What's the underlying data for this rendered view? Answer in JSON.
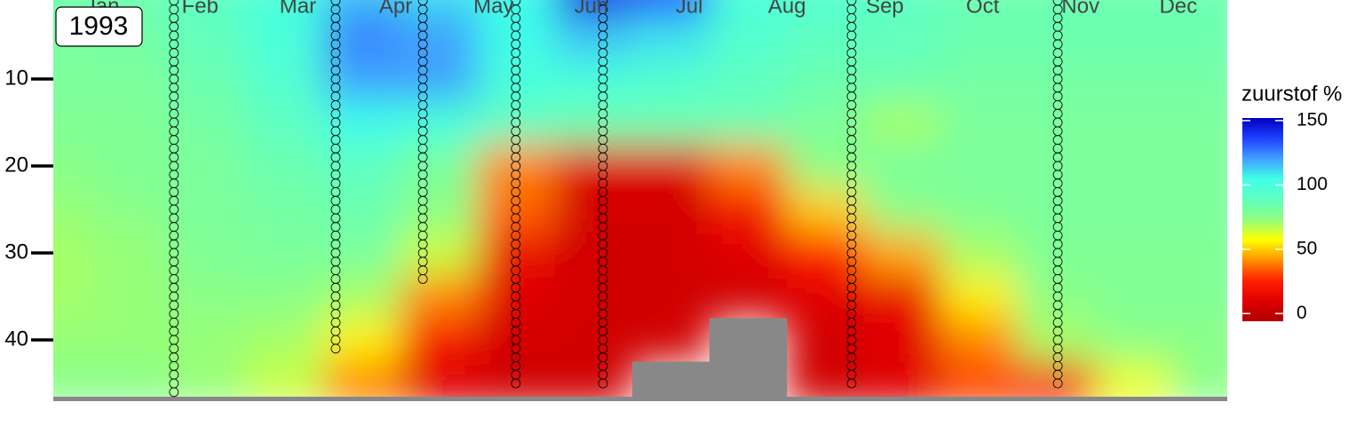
{
  "chart_data": {
    "type": "heatmap",
    "annotation": "1993",
    "categories": [
      "Jan",
      "Feb",
      "Mar",
      "Apr",
      "May",
      "Jun",
      "Jul",
      "Aug",
      "Sep",
      "Oct",
      "Nov",
      "Dec"
    ],
    "xlim": [
      0,
      365
    ],
    "ylim": [
      0,
      47
    ],
    "yticks": [
      10,
      20,
      30,
      40
    ],
    "y_inverted": true,
    "legend_title": "zuurstof %",
    "clim": [
      -6,
      152
    ],
    "cticks": [
      0,
      50,
      100,
      150
    ],
    "colors": [
      "#b00000",
      "#e00000",
      "#ff2000",
      "#ff9000",
      "#ffff00",
      "#90ff80",
      "#60ffc0",
      "#40ffe8",
      "#40a0ff",
      "#2040ff",
      "#0000c0"
    ],
    "na_color": "#888888",
    "x": [
      0,
      24,
      48,
      72,
      96,
      120,
      144,
      168,
      192,
      216,
      240,
      264,
      288,
      312,
      336,
      360
    ],
    "y": [
      0,
      5,
      10,
      15,
      20,
      25,
      30,
      35,
      40,
      45
    ],
    "z": [
      [
        85,
        85,
        90,
        100,
        115,
        110,
        105,
        145,
        135,
        100,
        95,
        90,
        85,
        85,
        85,
        85
      ],
      [
        80,
        82,
        88,
        100,
        125,
        120,
        105,
        115,
        110,
        95,
        90,
        88,
        85,
        85,
        85,
        85
      ],
      [
        80,
        80,
        85,
        95,
        120,
        120,
        100,
        100,
        95,
        90,
        85,
        85,
        82,
        82,
        82,
        82
      ],
      [
        78,
        78,
        82,
        90,
        105,
        100,
        90,
        85,
        85,
        85,
        80,
        70,
        80,
        80,
        80,
        80
      ],
      [
        75,
        78,
        80,
        85,
        90,
        80,
        40,
        10,
        10,
        40,
        75,
        80,
        80,
        80,
        80,
        80
      ],
      [
        72,
        75,
        80,
        82,
        85,
        75,
        35,
        5,
        5,
        20,
        50,
        75,
        78,
        80,
        80,
        80
      ],
      [
        70,
        72,
        78,
        80,
        80,
        65,
        15,
        5,
        5,
        10,
        25,
        45,
        70,
        78,
        78,
        78
      ],
      [
        70,
        72,
        75,
        75,
        70,
        40,
        10,
        5,
        5,
        5,
        10,
        15,
        55,
        75,
        78,
        78
      ],
      [
        72,
        72,
        72,
        70,
        55,
        20,
        5,
        5,
        5,
        null,
        5,
        10,
        40,
        70,
        75,
        75
      ],
      [
        75,
        75,
        72,
        65,
        40,
        10,
        5,
        5,
        null,
        null,
        5,
        10,
        30,
        20,
        60,
        75
      ]
    ],
    "profiles": [
      {
        "x": 37.5,
        "depths": [
          0,
          1,
          2,
          3,
          4,
          5,
          6,
          7,
          8,
          9,
          10,
          11,
          12,
          13,
          14,
          15,
          16,
          17,
          18,
          19,
          20,
          21,
          22,
          23,
          24,
          25,
          26,
          27,
          28,
          29,
          30,
          31,
          32,
          33,
          34,
          35,
          36,
          37,
          38,
          39,
          40,
          41,
          42,
          43,
          44,
          45,
          46
        ]
      },
      {
        "x": 87.8,
        "depths": [
          0,
          1,
          2,
          3,
          4,
          5,
          6,
          7,
          8,
          9,
          10,
          11,
          12,
          13,
          14,
          15,
          16,
          17,
          18,
          19,
          20,
          21,
          22,
          23,
          24,
          25,
          26,
          27,
          28,
          29,
          30,
          31,
          32,
          33,
          34,
          35,
          36,
          37,
          38,
          39,
          40,
          41
        ]
      },
      {
        "x": 114.9,
        "depths": [
          0,
          1,
          2,
          3,
          4,
          5,
          6,
          7,
          8,
          9,
          10,
          11,
          12,
          13,
          14,
          15,
          16,
          17,
          18,
          19,
          20,
          21,
          22,
          23,
          24,
          25,
          26,
          27,
          28,
          29,
          30,
          31,
          32,
          33
        ]
      },
      {
        "x": 143.8,
        "depths": [
          0,
          1,
          2,
          3,
          4,
          5,
          6,
          7,
          8,
          9,
          10,
          11,
          12,
          13,
          14,
          15,
          16,
          17,
          18,
          19,
          20,
          21,
          22,
          23,
          24,
          25,
          26,
          27,
          28,
          29,
          30,
          31,
          32,
          33,
          34,
          35,
          36,
          37,
          38,
          39,
          40,
          41,
          42,
          43,
          44,
          45
        ]
      },
      {
        "x": 170.9,
        "depths": [
          0,
          1,
          2,
          3,
          4,
          5,
          6,
          7,
          8,
          9,
          10,
          11,
          12,
          13,
          14,
          15,
          16,
          17,
          18,
          19,
          20,
          21,
          22,
          23,
          24,
          25,
          26,
          27,
          28,
          29,
          30,
          31,
          32,
          33,
          34,
          35,
          36,
          37,
          38,
          39,
          40,
          41,
          42,
          43,
          44,
          45
        ]
      },
      {
        "x": 248.2,
        "depths": [
          0,
          1,
          2,
          3,
          4,
          5,
          6,
          7,
          8,
          9,
          10,
          11,
          12,
          13,
          14,
          15,
          16,
          17,
          18,
          19,
          20,
          21,
          22,
          23,
          24,
          25,
          26,
          27,
          28,
          29,
          30,
          31,
          32,
          33,
          34,
          35,
          36,
          37,
          38,
          39,
          40,
          41,
          42,
          43,
          44,
          45
        ]
      },
      {
        "x": 312.3,
        "depths": [
          0,
          1,
          2,
          3,
          4,
          5,
          6,
          7,
          8,
          9,
          10,
          11,
          12,
          13,
          14,
          15,
          16,
          17,
          18,
          19,
          20,
          21,
          22,
          23,
          24,
          25,
          26,
          27,
          28,
          29,
          30,
          31,
          32,
          33,
          34,
          35,
          36,
          37,
          38,
          39,
          40,
          41,
          42,
          43,
          44,
          45
        ]
      }
    ]
  }
}
